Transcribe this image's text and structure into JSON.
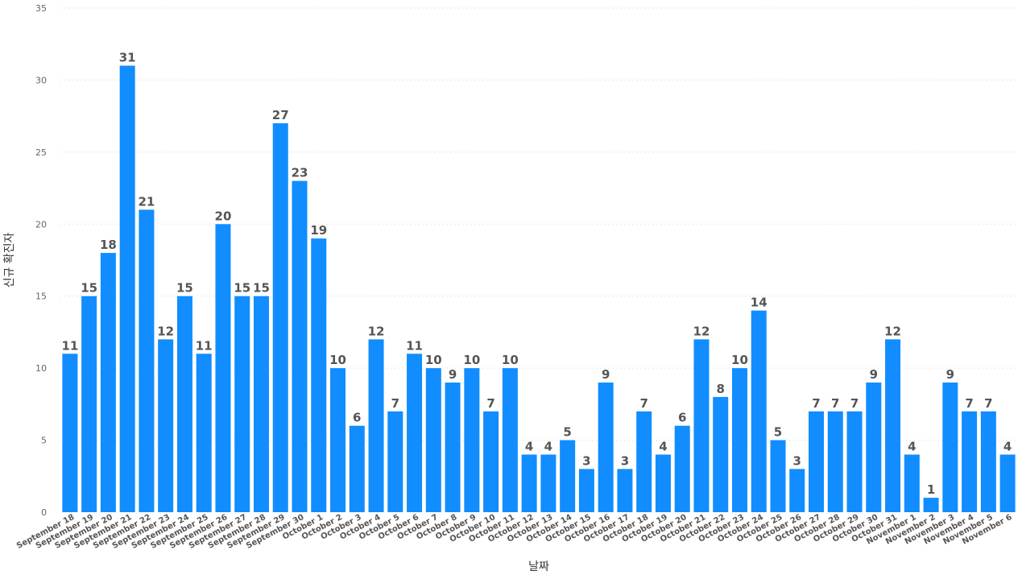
{
  "chart_data": {
    "type": "bar",
    "xlabel": "날짜",
    "ylabel": "신규 확진자",
    "ylim": [
      0,
      35
    ],
    "yticks": [
      0,
      5,
      10,
      15,
      20,
      25,
      30,
      35
    ],
    "grid": true,
    "bar_color": "#118DFF",
    "categories": [
      "September 18",
      "September 19",
      "September 20",
      "September 21",
      "September 22",
      "September 23",
      "September 24",
      "September 25",
      "September 26",
      "September 27",
      "September 28",
      "September 29",
      "September 30",
      "October 1",
      "October 2",
      "October 3",
      "October 4",
      "October 5",
      "October 6",
      "October 7",
      "October 8",
      "October 9",
      "October 10",
      "October 11",
      "October 12",
      "October 13",
      "October 14",
      "October 15",
      "October 16",
      "October 17",
      "October 18",
      "October 19",
      "October 20",
      "October 21",
      "October 22",
      "October 23",
      "October 24",
      "October 25",
      "October 26",
      "October 27",
      "October 28",
      "October 29",
      "October 30",
      "October 31",
      "November 1",
      "November 2",
      "November 3",
      "November 4",
      "November 5",
      "November 6"
    ],
    "values": [
      11,
      15,
      18,
      31,
      21,
      12,
      15,
      11,
      20,
      15,
      15,
      27,
      23,
      19,
      10,
      6,
      12,
      7,
      11,
      10,
      9,
      10,
      7,
      10,
      4,
      4,
      5,
      3,
      9,
      3,
      7,
      4,
      6,
      12,
      8,
      10,
      14,
      5,
      3,
      7,
      7,
      7,
      9,
      12,
      4,
      1,
      9,
      7,
      7,
      4
    ]
  }
}
